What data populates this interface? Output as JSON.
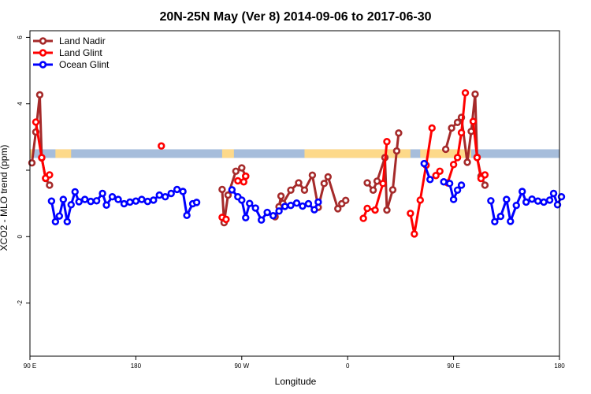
{
  "chart_data": {
    "type": "line",
    "title": "20N-25N May (Ver 8)   2014-09-06 to 2017-06-30",
    "xlabel": "Longitude",
    "ylabel": "XCO2 - MLO trend (ppm)",
    "xlim": [
      -90,
      180
    ],
    "ylim": [
      -3.6,
      6.2
    ],
    "x_ticks": [
      {
        "value": -90,
        "label": "90 E"
      },
      {
        "value": -36,
        "label": "180"
      },
      {
        "value": 18,
        "label": "90 W"
      },
      {
        "value": 72,
        "label": "0"
      },
      {
        "value": 126,
        "label": "90 E"
      },
      {
        "value": 180,
        "label": "180"
      }
    ],
    "y_ticks": [
      {
        "value": -2,
        "label": "-2"
      },
      {
        "value": 0,
        "label": "0"
      },
      {
        "value": 2,
        "label": ""
      },
      {
        "value": 4,
        "label": "4"
      },
      {
        "value": 6,
        "label": "6"
      }
    ],
    "legend_position": "top-left",
    "land_band": {
      "y_range": [
        2.37,
        2.63
      ],
      "ocean_color": "#a6bddb",
      "land_color": "#fdd98a",
      "land_segments": [
        [
          -90,
          -88.5
        ],
        [
          -77,
          -69
        ],
        [
          8,
          14
        ],
        [
          50,
          104
        ],
        [
          109,
          135
        ]
      ]
    },
    "series": [
      {
        "name": "Land Nadir",
        "color": "#a52a2a",
        "segments": [
          [
            [
              -89,
              2.22
            ],
            [
              -87,
              3.15
            ],
            [
              -85,
              4.27
            ],
            [
              -84,
              2.37
            ],
            [
              -82,
              1.75
            ],
            [
              -80,
              1.55
            ]
          ],
          [
            [
              8,
              1.42
            ],
            [
              9,
              0.42
            ],
            [
              11,
              1.25
            ],
            [
              15,
              1.97
            ],
            [
              18,
              2.07
            ],
            [
              20,
              1.82
            ]
          ],
          [
            [
              35,
              0.6
            ],
            [
              37,
              0.9
            ],
            [
              38,
              1.22
            ],
            [
              39,
              1.0
            ],
            [
              43,
              1.4
            ],
            [
              47,
              1.62
            ],
            [
              50,
              1.4
            ],
            [
              54,
              1.85
            ],
            [
              57,
              0.88
            ],
            [
              60,
              1.6
            ],
            [
              62,
              1.8
            ],
            [
              67,
              0.84
            ],
            [
              69,
              0.99
            ],
            [
              71,
              1.09
            ]
          ],
          [
            [
              82,
              1.62
            ],
            [
              85,
              1.4
            ],
            [
              87,
              1.67
            ],
            [
              91,
              2.38
            ],
            [
              92,
              0.8
            ],
            [
              95,
              1.41
            ],
            [
              97,
              2.58
            ],
            [
              98,
              3.12
            ]
          ],
          [
            [
              122,
              2.63
            ],
            [
              125,
              3.27
            ],
            [
              128,
              3.44
            ],
            [
              130,
              3.59
            ],
            [
              133,
              2.24
            ],
            [
              135,
              3.17
            ],
            [
              137,
              4.29
            ],
            [
              138,
              2.39
            ],
            [
              140,
              1.82
            ],
            [
              142,
              1.55
            ]
          ]
        ]
      },
      {
        "name": "Land Glint",
        "color": "#ff0000",
        "segments": [
          [
            [
              -87,
              3.45
            ],
            [
              -84,
              2.38
            ],
            [
              -82,
              1.76
            ],
            [
              -80,
              1.86
            ]
          ],
          [
            [
              -23,
              2.73
            ]
          ],
          [
            [
              8,
              0.58
            ],
            [
              10,
              0.52
            ]
          ],
          [
            [
              16,
              1.68
            ],
            [
              19,
              1.65
            ],
            [
              20,
              1.82
            ]
          ],
          [
            [
              80,
              0.55
            ],
            [
              82,
              0.85
            ],
            [
              86,
              0.8
            ],
            [
              90,
              1.6
            ],
            [
              92,
              2.86
            ]
          ],
          [
            [
              104,
              0.7
            ],
            [
              106,
              0.08
            ],
            [
              109,
              1.1
            ],
            [
              112,
              2.15
            ],
            [
              115,
              3.27
            ]
          ],
          [
            [
              117,
              1.84
            ],
            [
              119,
              1.97
            ]
          ],
          [
            [
              123,
              1.62
            ],
            [
              126,
              2.17
            ],
            [
              128,
              2.38
            ],
            [
              130,
              3.13
            ],
            [
              132,
              4.33
            ]
          ],
          [
            [
              136,
              3.47
            ],
            [
              138,
              2.38
            ],
            [
              140,
              1.75
            ],
            [
              142,
              1.86
            ]
          ]
        ]
      },
      {
        "name": "Ocean Glint",
        "color": "#0000ff",
        "segments": [
          [
            [
              -79,
              1.07
            ],
            [
              -77,
              0.45
            ],
            [
              -75,
              0.62
            ],
            [
              -73,
              1.12
            ],
            [
              -71,
              0.45
            ],
            [
              -69,
              0.96
            ],
            [
              -67,
              1.35
            ],
            [
              -65,
              1.05
            ],
            [
              -62,
              1.12
            ],
            [
              -59,
              1.06
            ],
            [
              -56,
              1.08
            ],
            [
              -53,
              1.3
            ],
            [
              -51,
              0.95
            ],
            [
              -48,
              1.2
            ],
            [
              -45,
              1.12
            ],
            [
              -42,
              0.99
            ],
            [
              -39,
              1.04
            ],
            [
              -36,
              1.07
            ],
            [
              -33,
              1.12
            ],
            [
              -30,
              1.06
            ],
            [
              -27,
              1.1
            ],
            [
              -24,
              1.25
            ],
            [
              -21,
              1.2
            ],
            [
              -18,
              1.3
            ],
            [
              -15,
              1.42
            ],
            [
              -12,
              1.36
            ],
            [
              -10,
              0.64
            ],
            [
              -7,
              0.99
            ],
            [
              -5,
              1.03
            ]
          ],
          [
            [
              13,
              1.41
            ],
            [
              16,
              1.2
            ],
            [
              18,
              1.1
            ],
            [
              20,
              0.57
            ],
            [
              22,
              1.0
            ],
            [
              25,
              0.86
            ],
            [
              28,
              0.5
            ],
            [
              31,
              0.73
            ],
            [
              34,
              0.63
            ],
            [
              37,
              0.77
            ],
            [
              40,
              0.91
            ],
            [
              43,
              0.94
            ],
            [
              46,
              1.01
            ],
            [
              49,
              0.92
            ],
            [
              52,
              0.99
            ],
            [
              55,
              0.81
            ],
            [
              57,
              1.04
            ]
          ],
          [
            [
              111,
              2.2
            ],
            [
              114,
              1.72
            ]
          ],
          [
            [
              121,
              1.65
            ],
            [
              124,
              1.6
            ],
            [
              126,
              1.12
            ],
            [
              128,
              1.4
            ],
            [
              130,
              1.55
            ]
          ],
          [
            [
              145,
              1.08
            ],
            [
              147,
              0.45
            ],
            [
              150,
              0.61
            ],
            [
              153,
              1.12
            ],
            [
              155,
              0.46
            ],
            [
              158,
              0.94
            ],
            [
              161,
              1.36
            ],
            [
              163,
              1.04
            ],
            [
              166,
              1.13
            ],
            [
              169,
              1.07
            ],
            [
              172,
              1.04
            ],
            [
              175,
              1.1
            ],
            [
              177,
              1.3
            ],
            [
              179,
              0.96
            ],
            [
              181,
              1.2
            ]
          ]
        ]
      }
    ]
  }
}
